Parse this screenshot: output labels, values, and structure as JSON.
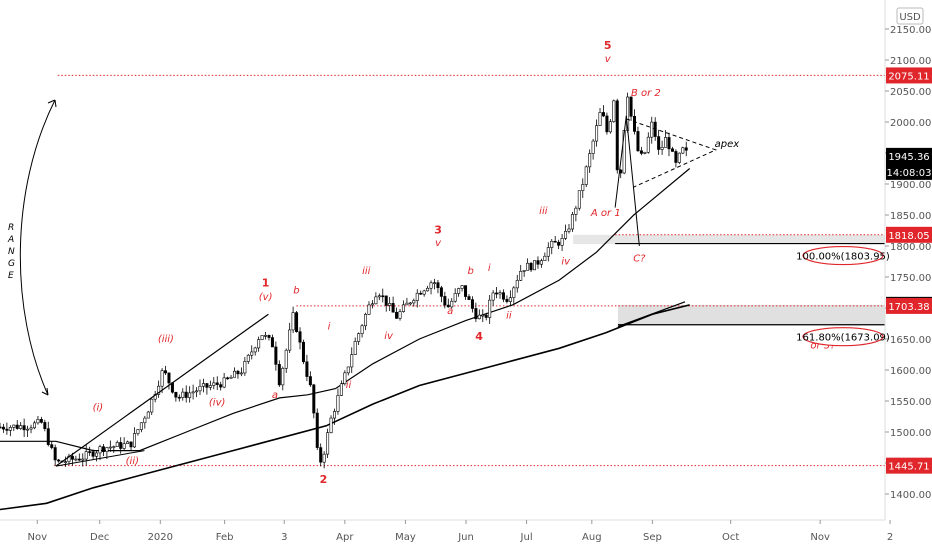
{
  "currency": "USD",
  "chart_data": {
    "type": "candlestick",
    "yaxis": {
      "min": 1355,
      "max": 2190,
      "ticks": [
        "1400.00",
        "1450.00",
        "1500.00",
        "1550.00",
        "1600.00",
        "1650.00",
        "1700.00",
        "1750.00",
        "1800.00",
        "1850.00",
        "1900.00",
        "1950.00",
        "2000.00",
        "2050.00",
        "2100.00",
        "2150.00"
      ]
    },
    "xaxis": {
      "ticks": [
        {
          "label": "Nov",
          "t": 0.04
        },
        {
          "label": "Dec",
          "t": 0.107
        },
        {
          "label": "2020",
          "t": 0.172
        },
        {
          "label": "Feb",
          "t": 0.241
        },
        {
          "label": "3",
          "t": 0.305
        },
        {
          "label": "Apr",
          "t": 0.37
        },
        {
          "label": "May",
          "t": 0.435
        },
        {
          "label": "Jun",
          "t": 0.5
        },
        {
          "label": "Jul",
          "t": 0.565
        },
        {
          "label": "Aug",
          "t": 0.635
        },
        {
          "label": "Sep",
          "t": 0.7
        },
        {
          "label": "Oct",
          "t": 0.784
        },
        {
          "label": "Nov",
          "t": 0.88
        },
        {
          "label": "2",
          "t": 0.955
        }
      ]
    },
    "price_path": [
      [
        0.0,
        1508
      ],
      [
        0.03,
        1510
      ],
      [
        0.045,
        1515
      ],
      [
        0.06,
        1450
      ],
      [
        0.09,
        1460
      ],
      [
        0.11,
        1475
      ],
      [
        0.14,
        1480
      ],
      [
        0.16,
        1540
      ],
      [
        0.175,
        1600
      ],
      [
        0.19,
        1555
      ],
      [
        0.215,
        1570
      ],
      [
        0.24,
        1580
      ],
      [
        0.26,
        1600
      ],
      [
        0.28,
        1660
      ],
      [
        0.293,
        1640
      ],
      [
        0.3,
        1580
      ],
      [
        0.315,
        1690
      ],
      [
        0.325,
        1620
      ],
      [
        0.335,
        1560
      ],
      [
        0.34,
        1470
      ],
      [
        0.345,
        1450
      ],
      [
        0.355,
        1520
      ],
      [
        0.37,
        1590
      ],
      [
        0.38,
        1640
      ],
      [
        0.395,
        1700
      ],
      [
        0.405,
        1730
      ],
      [
        0.425,
        1685
      ],
      [
        0.445,
        1720
      ],
      [
        0.465,
        1745
      ],
      [
        0.48,
        1700
      ],
      [
        0.495,
        1735
      ],
      [
        0.51,
        1690
      ],
      [
        0.52,
        1680
      ],
      [
        0.53,
        1730
      ],
      [
        0.545,
        1715
      ],
      [
        0.56,
        1765
      ],
      [
        0.575,
        1770
      ],
      [
        0.59,
        1800
      ],
      [
        0.605,
        1810
      ],
      [
        0.615,
        1850
      ],
      [
        0.625,
        1900
      ],
      [
        0.635,
        1960
      ],
      [
        0.645,
        2020
      ],
      [
        0.652,
        1980
      ],
      [
        0.66,
        2050
      ],
      [
        0.663,
        1890
      ],
      [
        0.668,
        1940
      ],
      [
        0.672,
        2060
      ],
      [
        0.678,
        2000
      ],
      [
        0.685,
        1950
      ],
      [
        0.69,
        1940
      ],
      [
        0.7,
        2000
      ],
      [
        0.707,
        1950
      ],
      [
        0.715,
        1975
      ],
      [
        0.725,
        1930
      ],
      [
        0.732,
        1955
      ],
      [
        0.74,
        1945
      ]
    ],
    "current_price": 1945.36,
    "series": [
      {
        "name": "",
        "points": [
          [
            0.0,
            1485
          ],
          [
            0.06,
            1485
          ],
          [
            0.1,
            1470
          ],
          [
            0.15,
            1470
          ],
          [
            0.2,
            1500
          ],
          [
            0.25,
            1530
          ],
          [
            0.3,
            1555
          ],
          [
            0.33,
            1560
          ],
          [
            0.36,
            1570
          ],
          [
            0.4,
            1610
          ],
          [
            0.45,
            1650
          ],
          [
            0.5,
            1680
          ],
          [
            0.55,
            1705
          ],
          [
            0.6,
            1745
          ],
          [
            0.64,
            1790
          ],
          [
            0.68,
            1850
          ],
          [
            0.74,
            1925
          ]
        ]
      },
      {
        "name": "",
        "points": [
          [
            0.0,
            1375
          ],
          [
            0.05,
            1385
          ],
          [
            0.1,
            1410
          ],
          [
            0.15,
            1430
          ],
          [
            0.2,
            1450
          ],
          [
            0.25,
            1470
          ],
          [
            0.3,
            1490
          ],
          [
            0.35,
            1510
          ],
          [
            0.4,
            1545
          ],
          [
            0.45,
            1575
          ],
          [
            0.5,
            1595
          ],
          [
            0.55,
            1615
          ],
          [
            0.6,
            1635
          ],
          [
            0.65,
            1660
          ],
          [
            0.7,
            1690
          ],
          [
            0.74,
            1705
          ]
        ]
      }
    ],
    "horizontal_levels": [
      {
        "label": "2075.11",
        "value": 2075.11,
        "style": "red-box"
      },
      {
        "label": "1945.36",
        "value": 1945.36,
        "style": "black-box"
      },
      {
        "label": "1922.87",
        "value": 1922.87,
        "style": "black-box"
      },
      {
        "label": "1818.05",
        "value": 1818.05,
        "style": "red-box"
      },
      {
        "label": "1705.06",
        "value": 1705.06,
        "style": "black-box"
      },
      {
        "label": "1703.38",
        "value": 1703.38,
        "style": "red-box"
      },
      {
        "label": "1445.71",
        "value": 1445.71,
        "style": "red-box"
      }
    ],
    "countdown": "14:08:03",
    "fib_targets": [
      {
        "label": "100.00%(1803.95)",
        "value": 1803.95
      },
      {
        "label": "161.80%(1673.09)",
        "value": 1673.09
      }
    ],
    "wave_labels": [
      {
        "text": "5",
        "t": 0.652,
        "v": 2118,
        "big": true
      },
      {
        "text": "v",
        "t": 0.652,
        "v": 2097
      },
      {
        "text": "B or 2",
        "t": 0.693,
        "v": 2042
      },
      {
        "text": "A or 1",
        "t": 0.65,
        "v": 1848
      },
      {
        "text": "C?",
        "t": 0.686,
        "v": 1775
      },
      {
        "text": "apex",
        "t": 0.78,
        "v": 1960,
        "black": true
      },
      {
        "text": "3",
        "t": 0.47,
        "v": 1820,
        "big": true
      },
      {
        "text": "v",
        "t": 0.47,
        "v": 1800
      },
      {
        "text": "iii",
        "t": 0.583,
        "v": 1852
      },
      {
        "text": "iv",
        "t": 0.607,
        "v": 1770
      },
      {
        "text": "i",
        "t": 0.525,
        "v": 1760
      },
      {
        "text": "b",
        "t": 0.505,
        "v": 1755
      },
      {
        "text": "a",
        "t": 0.483,
        "v": 1690
      },
      {
        "text": "ii",
        "t": 0.546,
        "v": 1683
      },
      {
        "text": "4",
        "t": 0.514,
        "v": 1648,
        "big": true
      },
      {
        "text": "iii",
        "t": 0.393,
        "v": 1755
      },
      {
        "text": "iv",
        "t": 0.417,
        "v": 1650
      },
      {
        "text": "i",
        "t": 0.353,
        "v": 1665
      },
      {
        "text": "ii",
        "t": 0.374,
        "v": 1571
      },
      {
        "text": "1",
        "t": 0.285,
        "v": 1735,
        "big": true
      },
      {
        "text": "(v)",
        "t": 0.285,
        "v": 1713
      },
      {
        "text": "b",
        "t": 0.318,
        "v": 1723
      },
      {
        "text": "a",
        "t": 0.295,
        "v": 1555
      },
      {
        "text": "2",
        "t": 0.347,
        "v": 1418,
        "big": true
      },
      {
        "text": "(iii)",
        "t": 0.178,
        "v": 1645
      },
      {
        "text": "(iv)",
        "t": 0.233,
        "v": 1543
      },
      {
        "text": "(i)",
        "t": 0.105,
        "v": 1535
      },
      {
        "text": "(ii)",
        "t": 0.142,
        "v": 1448
      },
      {
        "text": "or 3?",
        "t": 0.883,
        "v": 1635
      }
    ],
    "range_label": "R A N G E"
  }
}
